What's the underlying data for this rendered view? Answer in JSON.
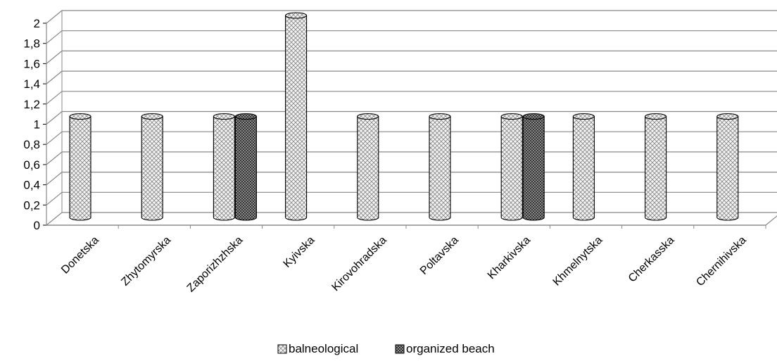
{
  "chart_data": {
    "type": "bar",
    "style": "3d-cylinder",
    "title": "",
    "xlabel": "",
    "ylabel": "",
    "ylim": [
      0,
      2
    ],
    "y_ticks": [
      "0",
      "0,2",
      "0,4",
      "0,6",
      "0,8",
      "1",
      "1,2",
      "1,4",
      "1,6",
      "1,8",
      "2"
    ],
    "grid": true,
    "legend_position": "bottom",
    "categories": [
      "Donetska",
      "Zhytomyrska",
      "Zaporizhzhska",
      "Kyivska",
      "Kirovohradska",
      "Poltavska",
      "Kharkivska",
      "Khmelnytska",
      "Cherkasska",
      "Chernihivska"
    ],
    "series": [
      {
        "name": "balneological",
        "values": [
          1,
          1,
          1,
          2,
          1,
          1,
          1,
          1,
          1,
          1
        ],
        "pattern": "light-crosshatch"
      },
      {
        "name": "organized beach",
        "values": [
          0,
          0,
          1,
          0,
          0,
          0,
          1,
          0,
          0,
          0
        ],
        "pattern": "dark-crosshatch"
      }
    ]
  }
}
